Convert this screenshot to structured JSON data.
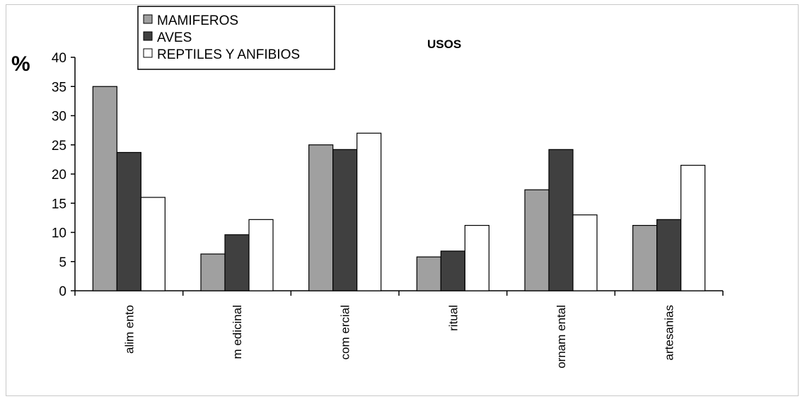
{
  "chart_data": {
    "type": "bar",
    "title": "USOS",
    "ylabel": "%",
    "xlabel": "",
    "ylim": [
      0,
      40
    ],
    "yticks": [
      0,
      5,
      10,
      15,
      20,
      25,
      30,
      35,
      40
    ],
    "categories": [
      "alimento",
      "medicinal",
      "comercial",
      "ritual",
      "ornamental",
      "artesanias"
    ],
    "category_labels": [
      "alim ento",
      "m edicinal",
      "com ercial",
      "ritual",
      "ornam ental",
      "artesanias"
    ],
    "series": [
      {
        "name": "MAMIFEROS",
        "color": "#a0a0a0",
        "values": [
          35,
          6.3,
          25,
          5.8,
          17.3,
          11.2
        ]
      },
      {
        "name": "AVES",
        "color": "#404040",
        "values": [
          23.7,
          9.6,
          24.2,
          6.8,
          24.2,
          12.2
        ]
      },
      {
        "name": "REPTILES Y ANFIBIOS",
        "color": "#ffffff",
        "values": [
          16,
          12.2,
          27,
          11.2,
          13,
          21.5
        ]
      }
    ],
    "grid": false,
    "legend_position": "top-left"
  }
}
